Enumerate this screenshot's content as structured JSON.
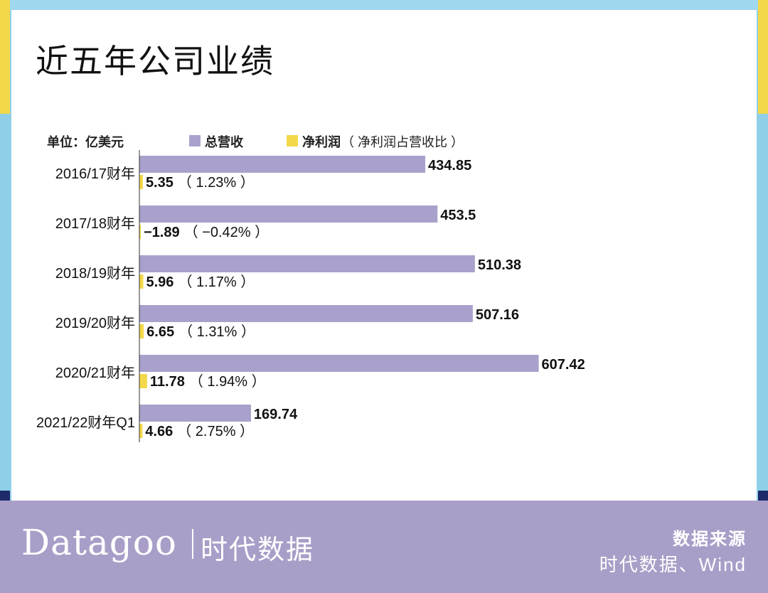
{
  "title": "近五年公司业绩",
  "legend": {
    "unit": "单位：亿美元",
    "revenue_label": "总营收",
    "profit_label": "净利润",
    "profit_note": "（ 净利润占营收比 ）"
  },
  "colors": {
    "revenue": "#a9a1cb",
    "profit": "#f3d84a",
    "footer": "#a99ec8",
    "frame": "#8fd0e8"
  },
  "chart_data": {
    "type": "bar",
    "orientation": "horizontal",
    "categories": [
      "2016/17财年",
      "2017/18财年",
      "2018/19财年",
      "2019/20财年",
      "2020/21财年",
      "2021/22财年Q1"
    ],
    "series": [
      {
        "name": "总营收",
        "values": [
          434.85,
          453.5,
          510.38,
          507.16,
          607.42,
          169.74
        ],
        "labels": [
          "434.85",
          "453.5",
          "510.38",
          "507.16",
          "607.42",
          "169.74"
        ]
      },
      {
        "name": "净利润",
        "values": [
          5.35,
          -1.89,
          5.96,
          6.65,
          11.78,
          4.66
        ],
        "labels": [
          "5.35",
          "−1.89",
          "5.96",
          "6.65",
          "11.78",
          "4.66"
        ]
      }
    ],
    "profit_ratio_labels": [
      "（ 1.23% ）",
      "（ −0.42% ）",
      "（ 1.17% ）",
      "（ 1.31% ）",
      "（ 1.94% ）",
      "（ 2.75% ）"
    ],
    "unit": "亿美元"
  },
  "footer": {
    "brand_en": "Datagoo",
    "brand_cn": "时代数据",
    "source_title": "数据来源",
    "source_text": "时代数据、Wind"
  }
}
